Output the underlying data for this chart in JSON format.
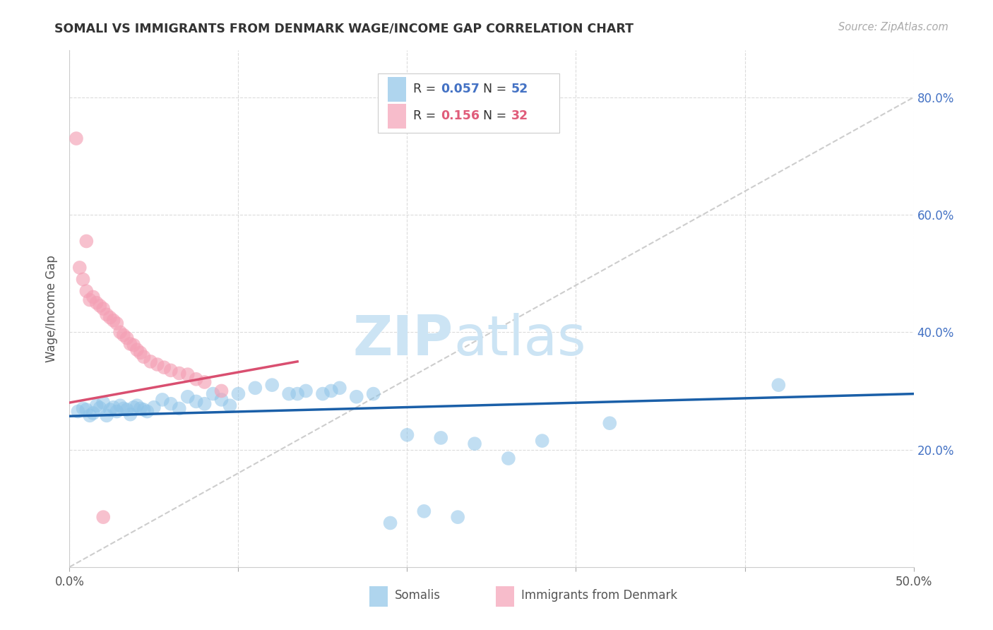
{
  "title": "SOMALI VS IMMIGRANTS FROM DENMARK WAGE/INCOME GAP CORRELATION CHART",
  "source": "Source: ZipAtlas.com",
  "ylabel": "Wage/Income Gap",
  "xlim": [
    0.0,
    0.5
  ],
  "ylim": [
    0.0,
    0.88
  ],
  "blue_color": "#8ec4e8",
  "pink_color": "#f4a0b5",
  "blue_line_color": "#1a5fa8",
  "pink_line_color": "#d94f70",
  "dashed_line_color": "#c8c8c8",
  "watermark_zip": "ZIP",
  "watermark_atlas": "atlas",
  "watermark_color": "#cce4f4",
  "somali_x": [
    0.005,
    0.008,
    0.01,
    0.012,
    0.014,
    0.016,
    0.018,
    0.02,
    0.022,
    0.024,
    0.026,
    0.028,
    0.03,
    0.032,
    0.034,
    0.036,
    0.038,
    0.04,
    0.042,
    0.044,
    0.046,
    0.05,
    0.055,
    0.06,
    0.065,
    0.07,
    0.075,
    0.08,
    0.085,
    0.09,
    0.095,
    0.1,
    0.11,
    0.12,
    0.13,
    0.14,
    0.15,
    0.16,
    0.17,
    0.18,
    0.2,
    0.22,
    0.24,
    0.26,
    0.28,
    0.32,
    0.42,
    0.19,
    0.21,
    0.23,
    0.135,
    0.155
  ],
  "somali_y": [
    0.265,
    0.27,
    0.268,
    0.258,
    0.262,
    0.275,
    0.271,
    0.28,
    0.258,
    0.268,
    0.272,
    0.265,
    0.275,
    0.27,
    0.268,
    0.26,
    0.272,
    0.275,
    0.27,
    0.268,
    0.265,
    0.272,
    0.285,
    0.278,
    0.27,
    0.29,
    0.282,
    0.278,
    0.295,
    0.285,
    0.275,
    0.295,
    0.305,
    0.31,
    0.295,
    0.3,
    0.295,
    0.305,
    0.29,
    0.295,
    0.225,
    0.22,
    0.21,
    0.185,
    0.215,
    0.245,
    0.31,
    0.075,
    0.095,
    0.085,
    0.295,
    0.3
  ],
  "denmark_x": [
    0.004,
    0.006,
    0.008,
    0.01,
    0.012,
    0.014,
    0.016,
    0.018,
    0.02,
    0.022,
    0.024,
    0.026,
    0.028,
    0.03,
    0.032,
    0.034,
    0.036,
    0.038,
    0.04,
    0.042,
    0.044,
    0.048,
    0.052,
    0.056,
    0.06,
    0.065,
    0.07,
    0.075,
    0.08,
    0.09,
    0.01,
    0.02
  ],
  "denmark_y": [
    0.73,
    0.51,
    0.49,
    0.47,
    0.455,
    0.46,
    0.45,
    0.445,
    0.44,
    0.43,
    0.425,
    0.42,
    0.415,
    0.4,
    0.395,
    0.39,
    0.38,
    0.378,
    0.37,
    0.365,
    0.358,
    0.35,
    0.345,
    0.34,
    0.335,
    0.33,
    0.328,
    0.32,
    0.315,
    0.3,
    0.555,
    0.085
  ],
  "blue_line_x": [
    0.0,
    0.5
  ],
  "blue_line_y": [
    0.257,
    0.295
  ],
  "pink_line_x": [
    0.0,
    0.135
  ],
  "pink_line_y": [
    0.28,
    0.35
  ],
  "dash_line_x": [
    0.0,
    0.5
  ],
  "dash_line_y": [
    0.0,
    0.8
  ]
}
